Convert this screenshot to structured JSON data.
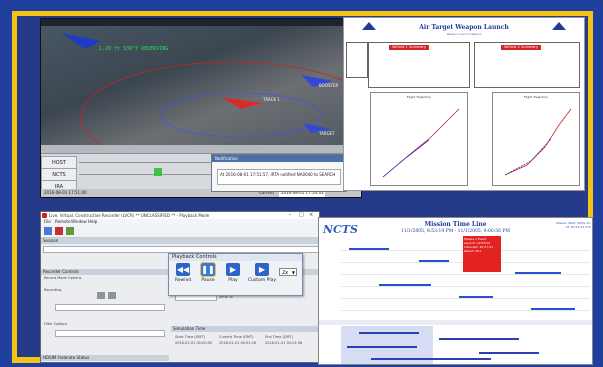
{
  "sim": {
    "hud_line": "1.20 ft  S39°Y  OBSERVING",
    "tracks": [
      "TRACK 1",
      "BOOSTER",
      "TARGET"
    ],
    "timeline_rows": [
      "HOST",
      "NCTS",
      "IRA"
    ],
    "footer_time": "2016-08-01 17:51:40",
    "current_label": "Current",
    "current_time": "2016-08-01 17:54:33",
    "notify_title": "Notification",
    "notify_text": "At 2016-08-01 17:51:57, IRTA notified NA0040 to SEARCH"
  },
  "sheet": {
    "title": "Air Target Weapon Launch",
    "subtitle": "Weapon Launch Report",
    "left_header": "Vehicle 1 Summary",
    "right_header": "Vehicle 2 Summary",
    "chart_left_title": "Flight Trajectory",
    "chart_right_title": "Flight Trajectory"
  },
  "app": {
    "title": "Live, Virtual, Constructive Recorder (LVCR) ** UNCLASSIFIED ** - Playback Mode",
    "menu": [
      "File",
      "Remote",
      "Window",
      "Help"
    ],
    "session_label": "Session",
    "recorder_controls": "Recorder Controls",
    "record_mode_options": "Record Mode Options",
    "recording": "Recording",
    "filter_options": "Filter Options",
    "simulation_time": "Simulation Time",
    "start_time_label": "Start Time (GMT)",
    "current_time_label": "Current Time (GMT)",
    "end_time_label": "End Time (GMT)",
    "start_time": "2016-01-01 00:00:00",
    "current_time": "2016-01-01 00:01:16",
    "end_time": "2016-01-01 00:01:58",
    "jump_to": "Jump To",
    "bottom_panel": "HDSIM Federate Status"
  },
  "playback": {
    "title": "Playback Controls",
    "buttons": [
      "Rewind",
      "Pause",
      "Play",
      "Custom Play"
    ],
    "speed": "2x"
  },
  "mtl": {
    "logo": "NCTS",
    "title": "Mission Time Line",
    "subtitle": "11/1/2005, 8:53:14 PM - 11/1/2005, 9:00:56 PM",
    "side_text": "Mission Start: 2005-11-01 20:53:14 UTC",
    "popup_title": "Missile 1 Event",
    "popup_lines": [
      "Launch: 20:55:02",
      "Intercept: 20:57:41",
      "Result: KILL"
    ]
  },
  "colors": {
    "frame": "#f3c318",
    "background": "#1f3e9e",
    "accent_blue": "#2e63c8",
    "alert_red": "#e32222"
  }
}
